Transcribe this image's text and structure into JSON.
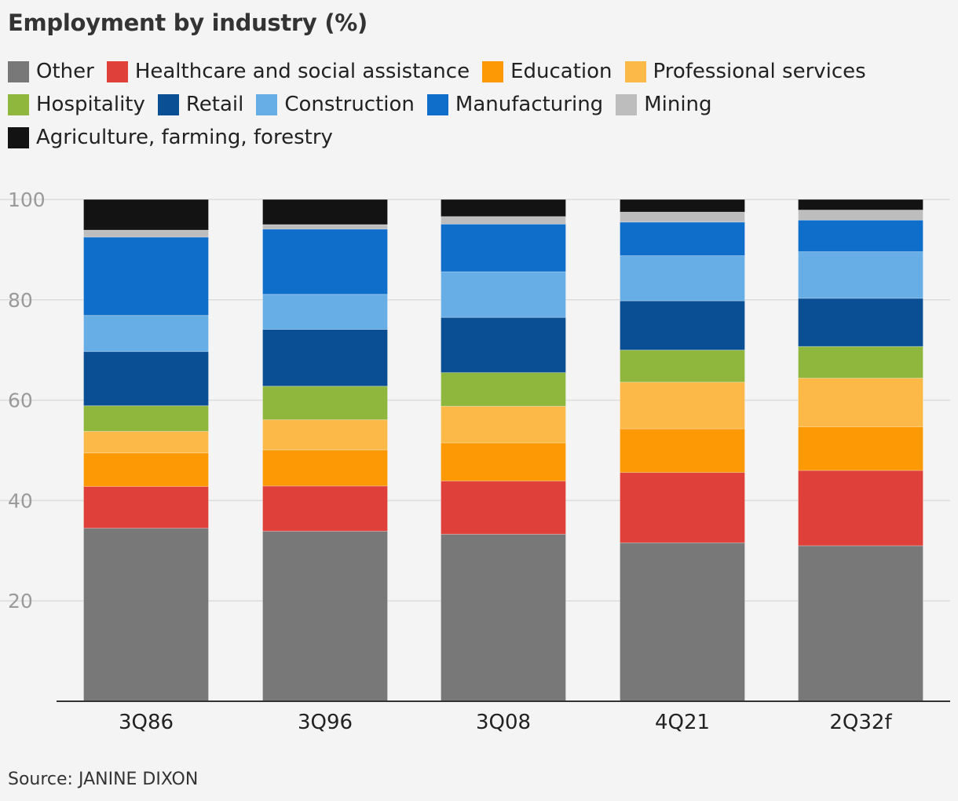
{
  "chart_data": {
    "type": "bar",
    "stacked": true,
    "title": "Employment by industry (%)",
    "source": "Source: JANINE DIXON",
    "categories": [
      "3Q86",
      "3Q96",
      "3Q08",
      "4Q21",
      "2Q32f"
    ],
    "ylim": [
      0,
      100
    ],
    "yticks": [
      20,
      40,
      60,
      80,
      100
    ],
    "grid": true,
    "legend_position": "top",
    "series": [
      {
        "name": "Other",
        "color": "#787878",
        "values": [
          34.5,
          33.9,
          33.3,
          31.6,
          31.0
        ]
      },
      {
        "name": "Healthcare and social assistance",
        "color": "#e0403a",
        "values": [
          8.3,
          9.0,
          10.6,
          14.0,
          15.0
        ]
      },
      {
        "name": "Education",
        "color": "#fd9905",
        "values": [
          6.7,
          7.2,
          7.6,
          8.7,
          8.7
        ]
      },
      {
        "name": "Professional services",
        "color": "#fdb947",
        "values": [
          4.3,
          6.0,
          7.3,
          9.3,
          9.7
        ]
      },
      {
        "name": "Hospitality",
        "color": "#8fb73e",
        "values": [
          5.1,
          6.7,
          6.7,
          6.4,
          6.3
        ]
      },
      {
        "name": "Retail",
        "color": "#0a4f94",
        "values": [
          10.8,
          11.3,
          11.0,
          9.8,
          9.6
        ]
      },
      {
        "name": "Construction",
        "color": "#67ade6",
        "values": [
          7.2,
          7.0,
          9.1,
          9.0,
          9.3
        ]
      },
      {
        "name": "Manufacturing",
        "color": "#106ecb",
        "values": [
          15.6,
          13.0,
          9.5,
          6.7,
          6.3
        ]
      },
      {
        "name": "Mining",
        "color": "#bdbdbd",
        "values": [
          1.4,
          0.9,
          1.5,
          2.0,
          2.0
        ]
      },
      {
        "name": "Agriculture, farming, forestry",
        "color": "#131313",
        "values": [
          6.1,
          5.0,
          3.4,
          2.5,
          2.1
        ]
      }
    ]
  }
}
